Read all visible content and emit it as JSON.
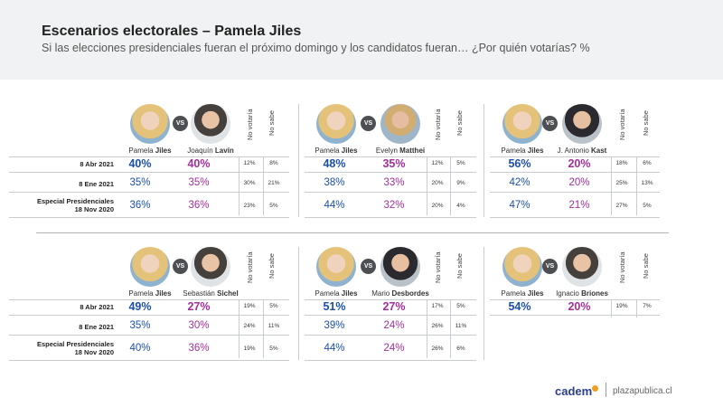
{
  "header": {
    "title": "Escenarios electorales – Pamela Jiles",
    "subtitle": "Si las elecciones presidenciales fueran el próximo domingo y los candidatos fueran… ¿Por quién votarías? %"
  },
  "columns": {
    "no_votaria": "No votaría",
    "no_sabe": "No sabe",
    "vs": "VS"
  },
  "colors": {
    "blue": "#1b4fa8",
    "purple": "#a22f9a",
    "header_bg": "#f1f2f3"
  },
  "chart_data": [
    {
      "type": "table",
      "title": "Pamela Jiles vs Joaquín Lavín",
      "candidate_a": {
        "first": "Pamela",
        "last": "Jiles"
      },
      "candidate_b": {
        "first": "Joaquín",
        "last": "Lavín"
      },
      "rows": [
        {
          "label": "8 Abr 2021",
          "a": "40%",
          "b": "40%",
          "no_votaria": "12%",
          "no_sabe": "8%"
        },
        {
          "label": "8 Ene 2021",
          "a": "35%",
          "b": "35%",
          "no_votaria": "30%",
          "no_sabe": "21%"
        },
        {
          "label": "Especial Presidenciales 18 Nov 2020",
          "a": "36%",
          "b": "36%",
          "no_votaria": "23%",
          "no_sabe": "5%"
        }
      ]
    },
    {
      "type": "table",
      "title": "Pamela Jiles vs Evelyn Matthei",
      "candidate_a": {
        "first": "Pamela",
        "last": "Jiles"
      },
      "candidate_b": {
        "first": "Evelyn",
        "last": "Matthei"
      },
      "rows": [
        {
          "label": "8 Abr 2021",
          "a": "48%",
          "b": "35%",
          "no_votaria": "12%",
          "no_sabe": "5%"
        },
        {
          "label": "8 Ene 2021",
          "a": "38%",
          "b": "33%",
          "no_votaria": "20%",
          "no_sabe": "9%"
        },
        {
          "label": "Especial Presidenciales 18 Nov 2020",
          "a": "44%",
          "b": "32%",
          "no_votaria": "20%",
          "no_sabe": "4%"
        }
      ]
    },
    {
      "type": "table",
      "title": "Pamela Jiles vs J. Antonio Kast",
      "candidate_a": {
        "first": "Pamela",
        "last": "Jiles"
      },
      "candidate_b": {
        "first": "J. Antonio",
        "last": "Kast"
      },
      "rows": [
        {
          "label": "8 Abr 2021",
          "a": "56%",
          "b": "20%",
          "no_votaria": "18%",
          "no_sabe": "6%"
        },
        {
          "label": "8 Ene 2021",
          "a": "42%",
          "b": "20%",
          "no_votaria": "25%",
          "no_sabe": "13%"
        },
        {
          "label": "Especial Presidenciales 18 Nov 2020",
          "a": "47%",
          "b": "21%",
          "no_votaria": "27%",
          "no_sabe": "5%"
        }
      ]
    },
    {
      "type": "table",
      "title": "Pamela Jiles vs Sebastián Sichel",
      "candidate_a": {
        "first": "Pamela",
        "last": "Jiles"
      },
      "candidate_b": {
        "first": "Sebastián",
        "last": "Sichel"
      },
      "rows": [
        {
          "label": "8 Abr 2021",
          "a": "49%",
          "b": "27%",
          "no_votaria": "19%",
          "no_sabe": "5%"
        },
        {
          "label": "8 Ene 2021",
          "a": "35%",
          "b": "30%",
          "no_votaria": "24%",
          "no_sabe": "11%"
        },
        {
          "label": "Especial Presidenciales 18 Nov 2020",
          "a": "40%",
          "b": "36%",
          "no_votaria": "19%",
          "no_sabe": "5%"
        }
      ]
    },
    {
      "type": "table",
      "title": "Pamela Jiles vs Mario Desbordes",
      "candidate_a": {
        "first": "Pamela",
        "last": "Jiles"
      },
      "candidate_b": {
        "first": "Mario",
        "last": "Desbordes"
      },
      "rows": [
        {
          "label": "8 Abr 2021",
          "a": "51%",
          "b": "27%",
          "no_votaria": "17%",
          "no_sabe": "5%"
        },
        {
          "label": "8 Ene 2021",
          "a": "39%",
          "b": "24%",
          "no_votaria": "26%",
          "no_sabe": "11%"
        },
        {
          "label": "Especial Presidenciales 18 Nov 2020",
          "a": "44%",
          "b": "24%",
          "no_votaria": "26%",
          "no_sabe": "6%"
        }
      ]
    },
    {
      "type": "table",
      "title": "Pamela Jiles vs Ignacio Briones",
      "candidate_a": {
        "first": "Pamela",
        "last": "Jiles"
      },
      "candidate_b": {
        "first": "Ignacio",
        "last": "Briones"
      },
      "rows": [
        {
          "label": "8 Abr 2021",
          "a": "54%",
          "b": "20%",
          "no_votaria": "19%",
          "no_sabe": "7%"
        }
      ]
    }
  ],
  "footer": {
    "brand": "cadem",
    "site": "plazapublica.cl"
  }
}
